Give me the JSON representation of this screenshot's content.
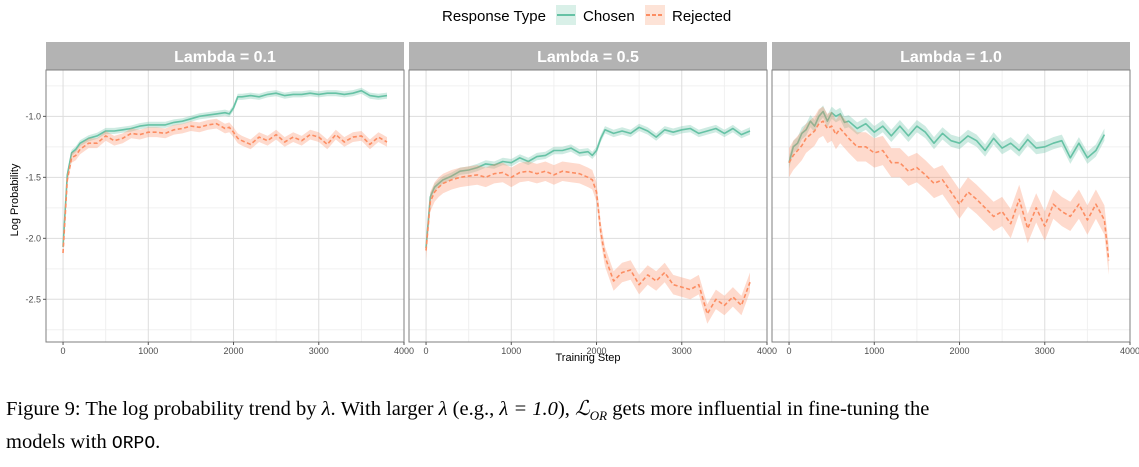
{
  "chart_data": {
    "type": "line",
    "facet_label": "Lambda",
    "xlabel": "Training Step",
    "ylabel": "Log Probability",
    "xlim": [
      -200,
      4000
    ],
    "ylim": [
      -2.85,
      -0.62
    ],
    "x_ticks": [
      0,
      1000,
      2000,
      3000,
      4000
    ],
    "y_ticks": [
      -1.0,
      -1.5,
      -2.0,
      -2.5
    ],
    "y_tick_labels": [
      "-1.0",
      "-1.5",
      "-2.0",
      "-2.5"
    ],
    "grid": true,
    "legend": {
      "title": "Response Type",
      "position": "top-center",
      "entries": [
        {
          "name": "Chosen",
          "color": "#66c2a5",
          "dash": "solid"
        },
        {
          "name": "Rejected",
          "color": "#fc8d62",
          "dash": "dashed"
        }
      ]
    },
    "panels": [
      {
        "title": "Lambda = 0.1",
        "series": [
          {
            "name": "Chosen",
            "color": "#66c2a5",
            "band": 0.025,
            "x": [
              0,
              50,
              100,
              150,
              200,
              300,
              400,
              500,
              600,
              700,
              800,
              900,
              1000,
              1100,
              1200,
              1300,
              1400,
              1500,
              1600,
              1700,
              1800,
              1900,
              1950,
              2000,
              2050,
              2100,
              2200,
              2300,
              2400,
              2500,
              2600,
              2700,
              2800,
              2900,
              3000,
              3100,
              3200,
              3300,
              3400,
              3500,
              3600,
              3700,
              3800
            ],
            "y": [
              -2.07,
              -1.48,
              -1.3,
              -1.27,
              -1.22,
              -1.18,
              -1.16,
              -1.12,
              -1.12,
              -1.11,
              -1.1,
              -1.08,
              -1.07,
              -1.07,
              -1.07,
              -1.05,
              -1.04,
              -1.02,
              -1.0,
              -0.99,
              -0.98,
              -0.97,
              -0.98,
              -0.93,
              -0.84,
              -0.84,
              -0.83,
              -0.84,
              -0.82,
              -0.81,
              -0.83,
              -0.82,
              -0.82,
              -0.81,
              -0.82,
              -0.81,
              -0.81,
              -0.82,
              -0.81,
              -0.79,
              -0.83,
              -0.84,
              -0.83
            ]
          },
          {
            "name": "Rejected",
            "color": "#fc8d62",
            "band": 0.04,
            "x": [
              0,
              50,
              100,
              150,
              200,
              300,
              400,
              500,
              600,
              700,
              800,
              900,
              1000,
              1100,
              1200,
              1300,
              1400,
              1500,
              1600,
              1700,
              1800,
              1900,
              1950,
              2000,
              2050,
              2100,
              2200,
              2300,
              2400,
              2500,
              2600,
              2700,
              2800,
              2900,
              3000,
              3100,
              3200,
              3300,
              3400,
              3500,
              3600,
              3700,
              3800
            ],
            "y": [
              -2.12,
              -1.52,
              -1.34,
              -1.32,
              -1.27,
              -1.22,
              -1.22,
              -1.16,
              -1.2,
              -1.18,
              -1.14,
              -1.15,
              -1.13,
              -1.13,
              -1.14,
              -1.11,
              -1.1,
              -1.08,
              -1.09,
              -1.07,
              -1.06,
              -1.1,
              -1.09,
              -1.13,
              -1.18,
              -1.2,
              -1.23,
              -1.17,
              -1.2,
              -1.15,
              -1.21,
              -1.17,
              -1.2,
              -1.15,
              -1.17,
              -1.23,
              -1.15,
              -1.21,
              -1.17,
              -1.16,
              -1.23,
              -1.17,
              -1.21
            ]
          }
        ]
      },
      {
        "title": "Lambda = 0.5",
        "series": [
          {
            "name": "Chosen",
            "color": "#66c2a5",
            "band": 0.03,
            "x": [
              0,
              50,
              100,
              150,
              200,
              300,
              400,
              500,
              600,
              700,
              800,
              900,
              1000,
              1100,
              1200,
              1300,
              1400,
              1500,
              1600,
              1700,
              1800,
              1900,
              1950,
              2000,
              2050,
              2100,
              2200,
              2300,
              2400,
              2500,
              2600,
              2700,
              2800,
              2900,
              3000,
              3100,
              3200,
              3300,
              3400,
              3500,
              3600,
              3700,
              3800
            ],
            "y": [
              -2.08,
              -1.66,
              -1.58,
              -1.55,
              -1.52,
              -1.49,
              -1.45,
              -1.44,
              -1.42,
              -1.39,
              -1.4,
              -1.37,
              -1.38,
              -1.34,
              -1.37,
              -1.33,
              -1.32,
              -1.28,
              -1.28,
              -1.26,
              -1.3,
              -1.29,
              -1.32,
              -1.28,
              -1.18,
              -1.11,
              -1.14,
              -1.12,
              -1.14,
              -1.09,
              -1.12,
              -1.17,
              -1.11,
              -1.13,
              -1.11,
              -1.1,
              -1.14,
              -1.12,
              -1.1,
              -1.14,
              -1.1,
              -1.15,
              -1.12
            ]
          },
          {
            "name": "Rejected",
            "color": "#fc8d62",
            "band": 0.08,
            "x": [
              0,
              50,
              100,
              150,
              200,
              300,
              400,
              500,
              600,
              700,
              800,
              900,
              1000,
              1100,
              1200,
              1300,
              1400,
              1500,
              1600,
              1700,
              1800,
              1900,
              1950,
              2000,
              2050,
              2100,
              2150,
              2200,
              2300,
              2400,
              2500,
              2600,
              2700,
              2800,
              2900,
              3000,
              3100,
              3200,
              3300,
              3400,
              3500,
              3600,
              3700,
              3800
            ],
            "y": [
              -2.1,
              -1.7,
              -1.62,
              -1.58,
              -1.55,
              -1.52,
              -1.5,
              -1.49,
              -1.48,
              -1.5,
              -1.47,
              -1.46,
              -1.5,
              -1.46,
              -1.45,
              -1.47,
              -1.45,
              -1.48,
              -1.45,
              -1.46,
              -1.47,
              -1.5,
              -1.52,
              -1.62,
              -1.95,
              -2.15,
              -2.25,
              -2.35,
              -2.28,
              -2.26,
              -2.38,
              -2.3,
              -2.35,
              -2.28,
              -2.38,
              -2.4,
              -2.42,
              -2.38,
              -2.62,
              -2.5,
              -2.55,
              -2.48,
              -2.55,
              -2.36
            ]
          }
        ]
      },
      {
        "title": "Lambda = 1.0",
        "series": [
          {
            "name": "Chosen",
            "color": "#66c2a5",
            "band": 0.05,
            "x": [
              0,
              50,
              100,
              150,
              200,
              250,
              300,
              350,
              400,
              450,
              500,
              550,
              600,
              650,
              700,
              800,
              900,
              1000,
              1100,
              1200,
              1300,
              1400,
              1500,
              1600,
              1700,
              1800,
              1900,
              2000,
              2100,
              2200,
              2300,
              2400,
              2500,
              2600,
              2700,
              2800,
              2900,
              3000,
              3100,
              3200,
              3300,
              3400,
              3500,
              3600,
              3700
            ],
            "y": [
              -1.38,
              -1.25,
              -1.22,
              -1.14,
              -1.11,
              -1.04,
              -1.08,
              -1.0,
              -0.96,
              -1.04,
              -0.97,
              -1.0,
              -0.98,
              -1.05,
              -1.04,
              -1.1,
              -1.06,
              -1.13,
              -1.08,
              -1.16,
              -1.08,
              -1.16,
              -1.08,
              -1.13,
              -1.22,
              -1.14,
              -1.2,
              -1.22,
              -1.16,
              -1.2,
              -1.28,
              -1.18,
              -1.26,
              -1.22,
              -1.28,
              -1.19,
              -1.26,
              -1.25,
              -1.22,
              -1.2,
              -1.34,
              -1.22,
              -1.34,
              -1.28,
              -1.15
            ]
          },
          {
            "name": "Rejected",
            "color": "#fc8d62",
            "band": 0.12,
            "x": [
              0,
              50,
              100,
              150,
              200,
              250,
              300,
              350,
              400,
              450,
              500,
              550,
              600,
              650,
              700,
              800,
              900,
              1000,
              1100,
              1200,
              1300,
              1400,
              1500,
              1600,
              1700,
              1800,
              1900,
              2000,
              2100,
              2200,
              2300,
              2400,
              2500,
              2600,
              2700,
              2800,
              2900,
              3000,
              3100,
              3200,
              3300,
              3400,
              3500,
              3600,
              3700,
              3750
            ],
            "y": [
              -1.38,
              -1.32,
              -1.28,
              -1.24,
              -1.18,
              -1.15,
              -1.12,
              -1.06,
              -1.04,
              -1.1,
              -1.08,
              -1.15,
              -1.1,
              -1.14,
              -1.18,
              -1.25,
              -1.25,
              -1.3,
              -1.28,
              -1.38,
              -1.38,
              -1.45,
              -1.42,
              -1.48,
              -1.55,
              -1.52,
              -1.62,
              -1.72,
              -1.62,
              -1.68,
              -1.75,
              -1.82,
              -1.78,
              -1.88,
              -1.68,
              -1.92,
              -1.75,
              -1.9,
              -1.72,
              -1.78,
              -1.82,
              -1.72,
              -1.85,
              -1.72,
              -1.85,
              -2.18
            ]
          }
        ]
      }
    ]
  },
  "caption": {
    "figure_label": "Figure 9:",
    "line1_a": "The log probability trend by",
    "lambda": "λ",
    "line1_b": ". With larger",
    "line1_c": "(e.g.,",
    "lambda_eq": "λ = 1.0",
    "line1_d": "),",
    "loss_symbol": "ℒ",
    "loss_sub": "OR",
    "line1_e": "gets more influential in fine-tuning the",
    "line2_a": "models with",
    "method": "ORPO",
    "line2_b": "."
  }
}
